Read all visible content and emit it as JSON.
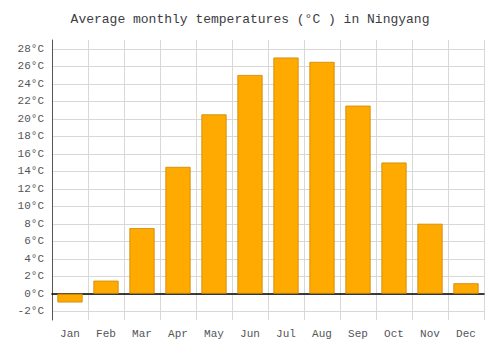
{
  "chart_data": {
    "type": "bar",
    "title": "Average monthly temperatures (°C ) in Ningyang",
    "categories": [
      "Jan",
      "Feb",
      "Mar",
      "Apr",
      "May",
      "Jun",
      "Jul",
      "Aug",
      "Sep",
      "Oct",
      "Nov",
      "Dec"
    ],
    "values": [
      -1.0,
      1.5,
      7.5,
      14.5,
      20.5,
      25.0,
      27.0,
      26.5,
      21.5,
      15.0,
      8.0,
      1.2
    ],
    "color": "#FFAA00",
    "ylim": [
      -3,
      29
    ],
    "yticks": [
      {
        "value": -2,
        "label": "-2°C"
      },
      {
        "value": 0,
        "label": "0°C"
      },
      {
        "value": 2,
        "label": "2°C"
      },
      {
        "value": 4,
        "label": "4°C"
      },
      {
        "value": 6,
        "label": "6°C"
      },
      {
        "value": 8,
        "label": "8°C"
      },
      {
        "value": 10,
        "label": "10°C"
      },
      {
        "value": 12,
        "label": "12°C"
      },
      {
        "value": 14,
        "label": "14°C"
      },
      {
        "value": 16,
        "label": "16°C"
      },
      {
        "value": 18,
        "label": "18°C"
      },
      {
        "value": 20,
        "label": "20°C"
      },
      {
        "value": 22,
        "label": "22°C"
      },
      {
        "value": 24,
        "label": "24°C"
      },
      {
        "value": 26,
        "label": "26°C"
      },
      {
        "value": 28,
        "label": "28°C"
      }
    ],
    "grid": true
  }
}
